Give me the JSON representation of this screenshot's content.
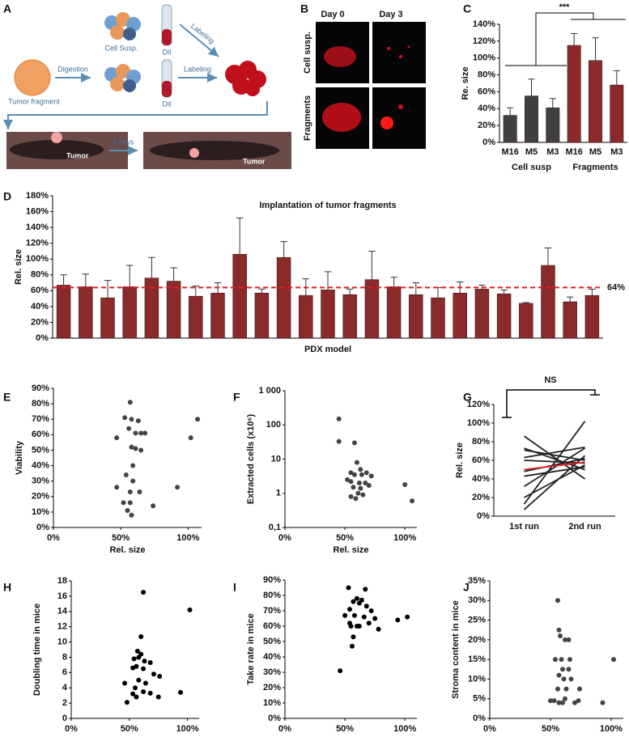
{
  "panel_labels": [
    "A",
    "B",
    "C",
    "D",
    "E",
    "F",
    "G",
    "H",
    "I",
    "J"
  ],
  "panel_a": {
    "cell_susp": "Cell Susp.",
    "dil_top": "DiI",
    "labeling_top": "Labeling",
    "digestion": "Digestion",
    "labeling_mid": "Labeling",
    "dil_mid": "DiI",
    "tumor_fragment": "Tumor fragment",
    "tumor_left": "Tumor",
    "days": "3 days",
    "tumor_right": "Tumor"
  },
  "panel_b": {
    "day0": "Day 0",
    "day3": "Day 3",
    "row1": "Cell susp.",
    "row2": "Fragments"
  },
  "chart_data": [
    {
      "type": "bar",
      "ylabel": "Re. size",
      "annotation": "***",
      "categories": [
        "M16",
        "M5",
        "M3",
        "M16",
        "M5",
        "M3"
      ],
      "group_labels": [
        "Cell susp",
        "Fragments"
      ],
      "values": [
        32,
        55,
        41,
        115,
        97,
        68
      ],
      "errors": [
        9,
        20,
        11,
        14,
        27,
        17
      ],
      "colors": [
        "#404040",
        "#404040",
        "#404040",
        "#8b2a2a",
        "#8b2a2a",
        "#8b2a2a"
      ],
      "ylim": [
        0,
        140
      ],
      "yticks": [
        {
          "value": 0,
          "label": "0%"
        },
        {
          "value": 20,
          "label": "20%"
        },
        {
          "value": 40,
          "label": "40%"
        },
        {
          "value": 60,
          "label": "60%"
        },
        {
          "value": 80,
          "label": "80%"
        },
        {
          "value": 100,
          "label": "100%"
        },
        {
          "value": 120,
          "label": "120%"
        },
        {
          "value": 140,
          "label": "140%"
        }
      ]
    },
    {
      "type": "bar",
      "title": "Implantation of tumor fragments",
      "xlabel": "PDX model",
      "ylabel": "Rel. size",
      "values": [
        67,
        65,
        51,
        65,
        76,
        72,
        53,
        57,
        106,
        57,
        102,
        54,
        61,
        55,
        74,
        65,
        55,
        51,
        57,
        62,
        56,
        44,
        92,
        46,
        54
      ],
      "errors": [
        13,
        16,
        22,
        27,
        26,
        17,
        13,
        13,
        46,
        5,
        20,
        21,
        23,
        7,
        36,
        12,
        15,
        13,
        14,
        5,
        5,
        1,
        22,
        6,
        8
      ],
      "color": "#8b2a2a",
      "ref_line": {
        "value": 64,
        "label": "64%",
        "color": "#e02020"
      },
      "ylim": [
        0,
        180
      ],
      "yticks": [
        {
          "value": 0,
          "label": "0%"
        },
        {
          "value": 20,
          "label": "20%"
        },
        {
          "value": 40,
          "label": "40%"
        },
        {
          "value": 60,
          "label": "60%"
        },
        {
          "value": 80,
          "label": "80%"
        },
        {
          "value": 100,
          "label": "100%"
        },
        {
          "value": 120,
          "label": "120%"
        },
        {
          "value": 140,
          "label": "140%"
        },
        {
          "value": 160,
          "label": "160%"
        },
        {
          "value": 180,
          "label": "180%"
        }
      ]
    },
    {
      "type": "scatter",
      "xlabel": "Rel. size",
      "ylabel": "Viability",
      "color": "#444444",
      "x": [
        57,
        53,
        58,
        63,
        56,
        61,
        65,
        68,
        47,
        58,
        61,
        65,
        59,
        59,
        57,
        64,
        47,
        52,
        57,
        74,
        55,
        58,
        92,
        102,
        107,
        54
      ],
      "values": [
        81,
        71,
        70,
        69,
        64,
        61,
        61,
        61,
        58,
        52,
        51,
        50,
        40,
        30,
        23,
        23,
        26,
        16,
        16,
        14,
        11,
        8,
        26,
        58,
        70,
        34
      ],
      "xlim": [
        0,
        110
      ],
      "xticks": [
        {
          "value": 0,
          "label": "0%"
        },
        {
          "value": 50,
          "label": "50%"
        },
        {
          "value": 100,
          "label": "100%"
        }
      ],
      "ylim": [
        0,
        90
      ],
      "yticks": [
        {
          "value": 0,
          "label": "0%"
        },
        {
          "value": 10,
          "label": "10%"
        },
        {
          "value": 20,
          "label": "20%"
        },
        {
          "value": 30,
          "label": "30%"
        },
        {
          "value": 40,
          "label": "40%"
        },
        {
          "value": 50,
          "label": "50%"
        },
        {
          "value": 60,
          "label": "60%"
        },
        {
          "value": 70,
          "label": "70%"
        },
        {
          "value": 80,
          "label": "80%"
        },
        {
          "value": 90,
          "label": "90%"
        }
      ]
    },
    {
      "type": "scatter",
      "xlabel": "Rel. size",
      "ylabel": "Extracted cells (x10⁶)",
      "color": "#444444",
      "log_scale": true,
      "x": [
        45,
        45,
        58,
        60,
        55,
        63,
        68,
        58,
        64,
        72,
        55,
        62,
        67,
        57,
        63,
        70,
        61,
        55,
        65,
        59,
        100,
        106,
        52
      ],
      "values": [
        150,
        33,
        30,
        8,
        4,
        5,
        4,
        3.5,
        3.5,
        3.2,
        2.2,
        2,
        2,
        1.5,
        1.4,
        1.7,
        1,
        0.8,
        0.9,
        0.7,
        1.8,
        0.6,
        2.5
      ],
      "xlim": [
        0,
        110
      ],
      "xticks": [
        {
          "value": 0,
          "label": "0%"
        },
        {
          "value": 50,
          "label": "50%"
        },
        {
          "value": 100,
          "label": "100%"
        }
      ],
      "ylim": [
        0.1,
        1000
      ],
      "yticks": [
        {
          "value": 0.1,
          "label": "0,1"
        },
        1,
        10,
        100,
        {
          "value": 1000,
          "label": "1 000"
        }
      ]
    },
    {
      "type": "line",
      "ylabel": "Rel. size",
      "annotation": "NS",
      "categories": [
        "1st run",
        "2nd run"
      ],
      "series": [
        {
          "color": "#222222",
          "values": [
            86,
            40
          ]
        },
        {
          "color": "#222222",
          "values": [
            73,
            50
          ]
        },
        {
          "color": "#222222",
          "values": [
            71,
            60
          ]
        },
        {
          "color": "#222222",
          "values": [
            63,
            74
          ]
        },
        {
          "color": "#222222",
          "values": [
            60,
            57
          ]
        },
        {
          "color": "#222222",
          "values": [
            48,
            62
          ]
        },
        {
          "color": "#222222",
          "values": [
            43,
            53
          ]
        },
        {
          "color": "#222222",
          "values": [
            32,
            73
          ]
        },
        {
          "color": "#222222",
          "values": [
            20,
            55
          ]
        },
        {
          "color": "#222222",
          "values": [
            13,
            102
          ]
        },
        {
          "color": "#222222",
          "values": [
            7,
            65
          ]
        },
        {
          "color": "#e02020",
          "values": [
            50,
            58
          ]
        }
      ],
      "ylim": [
        0,
        120
      ],
      "yticks": [
        {
          "value": 0,
          "label": "0%"
        },
        {
          "value": 20,
          "label": "20%"
        },
        {
          "value": 40,
          "label": "40%"
        },
        {
          "value": 60,
          "label": "60%"
        },
        {
          "value": 80,
          "label": "80%"
        },
        {
          "value": 100,
          "label": "100%"
        },
        {
          "value": 120,
          "label": "120%"
        }
      ]
    },
    {
      "type": "scatter",
      "xlabel": "Rel. size",
      "ylabel": "Doubling time in mice",
      "color": "#000000",
      "x": [
        62,
        102,
        60,
        57,
        60,
        54,
        58,
        63,
        68,
        53,
        56,
        62,
        71,
        76,
        46,
        58,
        64,
        55,
        62,
        68,
        94,
        56,
        75,
        48,
        53
      ],
      "values": [
        16.5,
        14.2,
        10.7,
        8.8,
        8.4,
        7.8,
        8,
        7.5,
        7.3,
        6.6,
        6.8,
        6.5,
        5.8,
        5.5,
        4.6,
        5,
        4.6,
        4,
        3.5,
        3.3,
        3.4,
        2.8,
        2.8,
        2.1,
        3.2
      ],
      "xlim": [
        0,
        110
      ],
      "xticks": [
        {
          "value": 0,
          "label": "0%"
        },
        {
          "value": 50,
          "label": "50%"
        },
        {
          "value": 100,
          "label": "100%"
        }
      ],
      "ylim": [
        0,
        18
      ],
      "yticks": [
        0,
        2,
        4,
        6,
        8,
        10,
        12,
        14,
        16,
        18
      ]
    },
    {
      "type": "scatter",
      "xlabel": "Rel. size",
      "ylabel": "Take rate in mice",
      "color": "#000000",
      "x": [
        53,
        67,
        60,
        64,
        57,
        62,
        68,
        54,
        72,
        50,
        58,
        66,
        75,
        94,
        102,
        54,
        60,
        55,
        62,
        70,
        78,
        57,
        56,
        46
      ],
      "values": [
        85,
        84,
        78,
        77,
        76,
        75,
        73,
        71,
        70,
        67,
        67,
        66,
        65,
        64,
        66,
        62,
        60,
        60,
        60,
        62,
        58,
        53,
        47,
        31
      ],
      "xlim": [
        0,
        110
      ],
      "xticks": [
        {
          "value": 0,
          "label": "0%"
        },
        {
          "value": 50,
          "label": "50%"
        },
        {
          "value": 100,
          "label": "100%"
        }
      ],
      "ylim": [
        0,
        90
      ],
      "yticks": [
        {
          "value": 0,
          "label": "0%"
        },
        {
          "value": 10,
          "label": "10%"
        },
        {
          "value": 20,
          "label": "20%"
        },
        {
          "value": 30,
          "label": "30%"
        },
        {
          "value": 40,
          "label": "40%"
        },
        {
          "value": 50,
          "label": "50%"
        },
        {
          "value": 60,
          "label": "60%"
        },
        {
          "value": 70,
          "label": "70%"
        },
        {
          "value": 80,
          "label": "80%"
        },
        {
          "value": 90,
          "label": "90%"
        }
      ]
    },
    {
      "type": "scatter",
      "xlabel": "Rel. size",
      "ylabel": "Stroma content in mice",
      "color": "#444444",
      "x": [
        56,
        57,
        58,
        62,
        65,
        54,
        59,
        66,
        60,
        65,
        57,
        61,
        67,
        56,
        63,
        74,
        50,
        53,
        57,
        60,
        70,
        73,
        93,
        102,
        62
      ],
      "values": [
        30,
        22.5,
        21,
        20,
        20,
        15,
        15,
        15,
        12.5,
        12.5,
        11,
        10,
        10,
        7.5,
        7.5,
        7.5,
        4.5,
        4.5,
        4,
        4,
        4,
        4.5,
        4,
        15,
        5
      ],
      "xlim": [
        0,
        110
      ],
      "xticks": [
        {
          "value": 0,
          "label": "0%"
        },
        {
          "value": 50,
          "label": "50%"
        },
        {
          "value": 100,
          "label": "100%"
        }
      ],
      "ylim": [
        0,
        35
      ],
      "yticks": [
        {
          "value": 0,
          "label": "0%"
        },
        {
          "value": 5,
          "label": "5%"
        },
        {
          "value": 10,
          "label": "10%"
        },
        {
          "value": 15,
          "label": "15%"
        },
        {
          "value": 20,
          "label": "20%"
        },
        {
          "value": 25,
          "label": "25%"
        },
        {
          "value": 30,
          "label": "30%"
        },
        {
          "value": 35,
          "label": "35%"
        }
      ]
    }
  ]
}
